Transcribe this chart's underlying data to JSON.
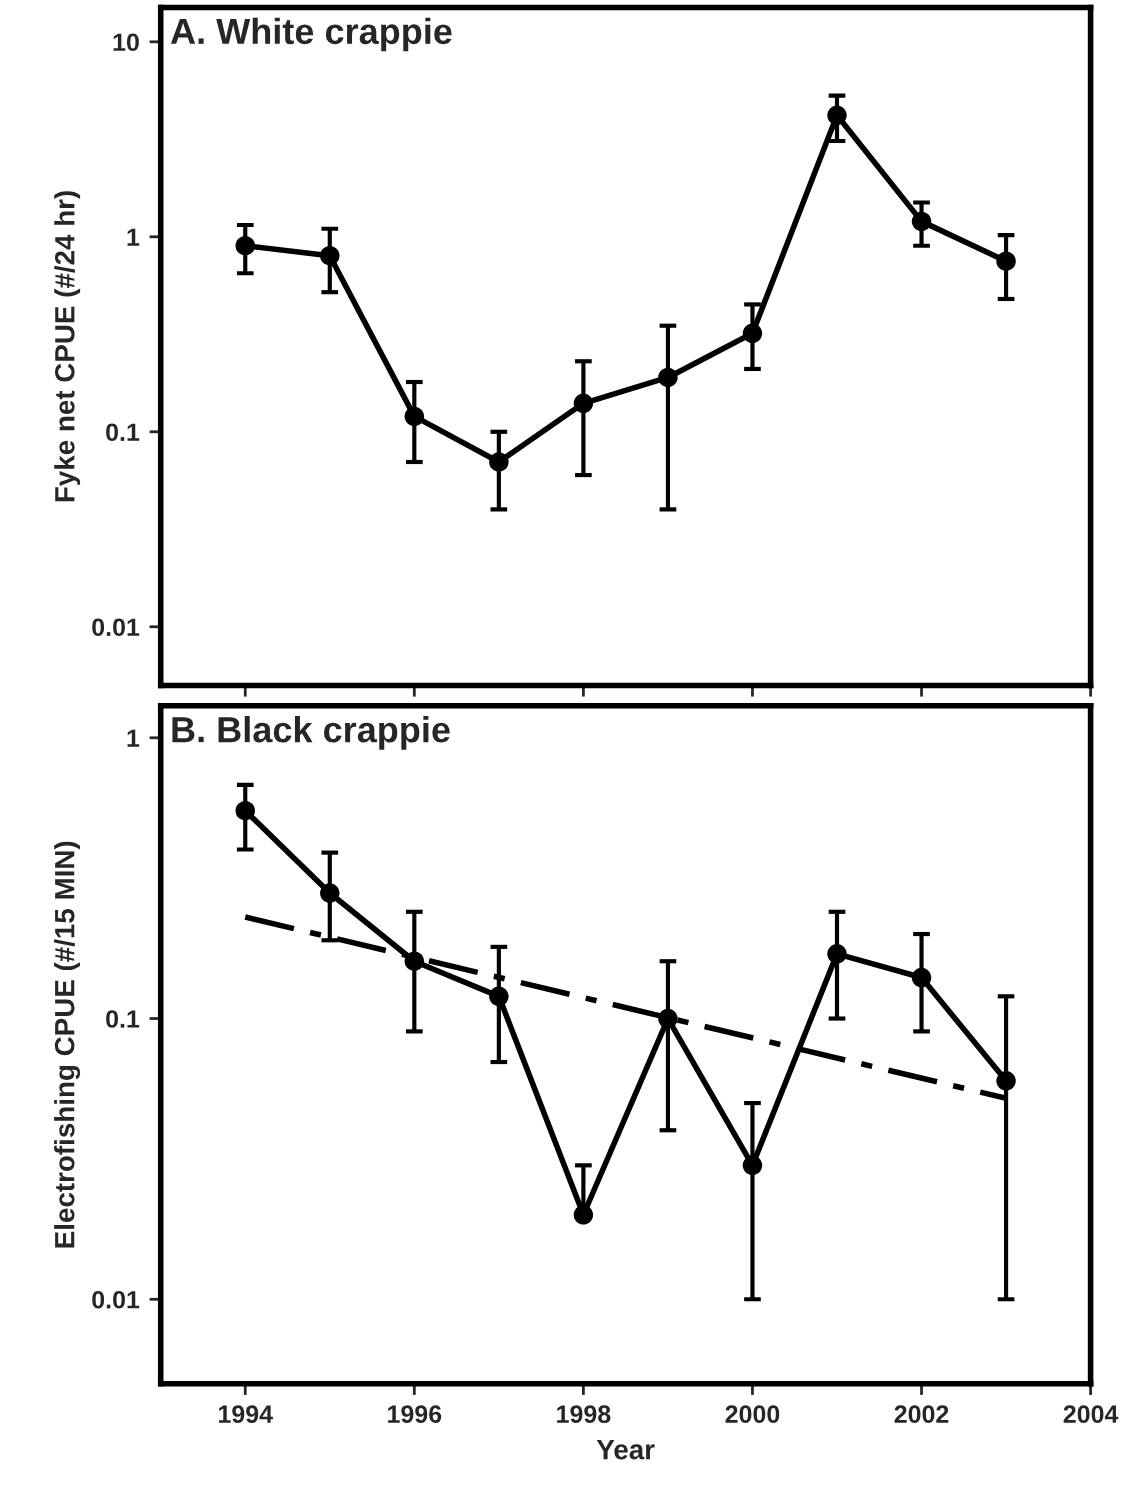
{
  "chart_data": [
    {
      "type": "line",
      "title": "A. White crappie",
      "ylabel": "Fyke net CPUE (#/24 hr)",
      "log": "y",
      "marker": "circle",
      "line_style": "solid",
      "grid": false,
      "tick_labels": "y",
      "x": [
        1994,
        1995,
        1996,
        1997,
        1998,
        1999,
        2000,
        2001,
        2002,
        2003
      ],
      "xlim": [
        1993,
        2004
      ],
      "xticks": [
        1994,
        1996,
        1998,
        2000,
        2002,
        2004
      ],
      "ylim": [
        0.005,
        15
      ],
      "yticks": [
        0.01,
        0.1,
        1,
        10
      ],
      "series": [
        {
          "color": "#000000",
          "values": [
            0.9,
            0.8,
            0.12,
            0.07,
            0.14,
            0.19,
            0.32,
            4.2,
            1.2,
            0.75
          ],
          "errors": [
            [
              0.65,
              1.15
            ],
            [
              0.52,
              1.1
            ],
            [
              0.07,
              0.18
            ],
            [
              0.04,
              0.1
            ],
            [
              0.06,
              0.23
            ],
            [
              0.04,
              0.35
            ],
            [
              0.21,
              0.45
            ],
            [
              3.1,
              5.3
            ],
            [
              0.9,
              1.5
            ],
            [
              0.48,
              1.02
            ]
          ]
        }
      ]
    },
    {
      "type": "line",
      "title": "B. Black crappie",
      "xlabel": "Year",
      "ylabel": "Electrofishing CPUE (#/15 MIN)",
      "log": "y",
      "marker": "circle",
      "line_style": "solid",
      "grid": false,
      "x": [
        1994,
        1995,
        1996,
        1997,
        1998,
        1999,
        2000,
        2001,
        2002,
        2003
      ],
      "xlim": [
        1993,
        2004
      ],
      "xticks": [
        1994,
        1996,
        1998,
        2000,
        2002,
        2004
      ],
      "ylim": [
        0.005,
        1.3
      ],
      "yticks": [
        0.01,
        0.1,
        1
      ],
      "series": [
        {
          "color": "#000000",
          "values": [
            0.55,
            0.28,
            0.16,
            0.12,
            0.02,
            0.1,
            0.03,
            0.17,
            0.14,
            0.06
          ],
          "errors": [
            [
              0.4,
              0.68
            ],
            [
              0.19,
              0.39
            ],
            [
              0.09,
              0.24
            ],
            [
              0.07,
              0.18
            ],
            [
              0.02,
              0.03
            ],
            [
              0.04,
              0.16
            ],
            [
              0.01,
              0.05
            ],
            [
              0.1,
              0.24
            ],
            [
              0.09,
              0.2
            ],
            [
              0.01,
              0.12
            ]
          ]
        },
        {
          "type": "line",
          "color": "#000000",
          "x": [
            1994,
            2003
          ],
          "values": [
            0.23,
            0.052
          ],
          "marker": "none",
          "line_style": "dashed"
        }
      ]
    }
  ]
}
